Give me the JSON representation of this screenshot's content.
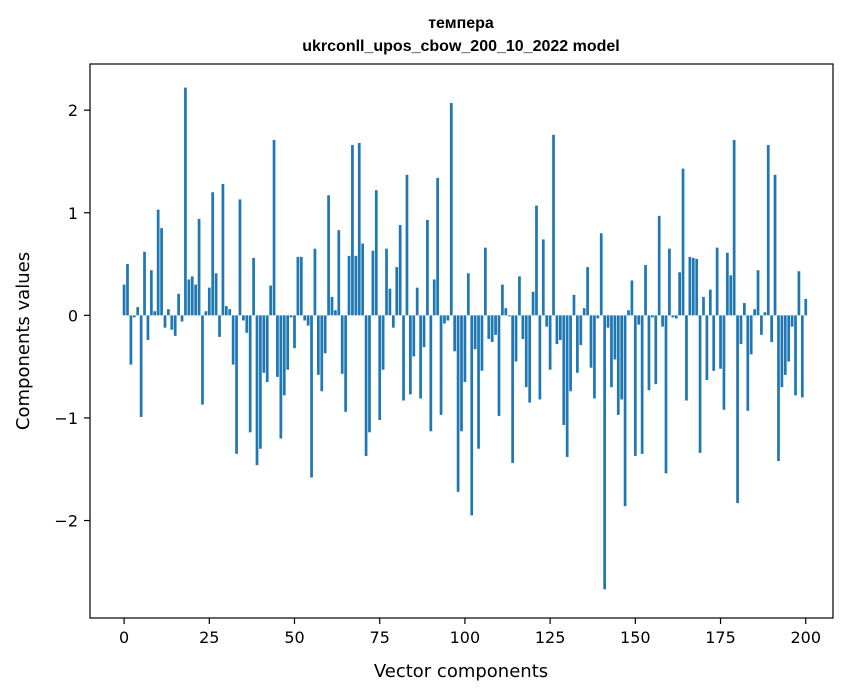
{
  "chart_data": {
    "type": "bar",
    "title": "темпера",
    "subtitle": "ukrconll_upos_cbow_200_10_2022 model",
    "xlabel": "Vector components",
    "ylabel": "Components values",
    "xlim": [
      -10,
      208
    ],
    "ylim": [
      -2.95,
      2.45
    ],
    "x_ticks": [
      0,
      25,
      50,
      75,
      100,
      125,
      150,
      175,
      200
    ],
    "y_ticks": [
      -2,
      -1,
      0,
      1,
      2
    ],
    "grid": false,
    "bar_color": "#1f77b4",
    "values": [
      0.3,
      0.5,
      -0.48,
      -0.02,
      0.08,
      -0.99,
      0.62,
      -0.24,
      0.44,
      0.04,
      1.03,
      0.85,
      -0.12,
      0.06,
      -0.14,
      -0.2,
      0.21,
      -0.06,
      2.22,
      0.35,
      0.38,
      0.3,
      0.94,
      -0.87,
      0.04,
      0.27,
      1.2,
      0.41,
      -0.21,
      1.28,
      0.09,
      0.06,
      -0.48,
      -1.35,
      1.13,
      -0.05,
      -0.17,
      -1.14,
      0.56,
      -1.46,
      -1.3,
      -0.56,
      -0.65,
      0.29,
      1.71,
      -0.6,
      -1.2,
      -0.78,
      -0.53,
      -0.02,
      -0.32,
      0.57,
      0.57,
      -0.05,
      -0.1,
      -1.58,
      0.65,
      -0.58,
      -0.74,
      -0.37,
      1.17,
      0.18,
      0.05,
      0.83,
      -0.57,
      -0.94,
      0.58,
      1.66,
      0.58,
      1.68,
      0.7,
      -1.37,
      -1.14,
      0.63,
      1.22,
      -1.02,
      -0.53,
      0.65,
      0.26,
      -0.12,
      0.47,
      0.88,
      -0.83,
      1.37,
      -0.77,
      -0.4,
      0.27,
      -0.81,
      -0.31,
      0.93,
      -1.13,
      0.35,
      1.34,
      -0.97,
      -0.08,
      -0.05,
      2.07,
      -0.35,
      -1.72,
      -1.13,
      -0.65,
      0.41,
      -1.95,
      -0.33,
      -1.3,
      -0.54,
      0.66,
      -0.23,
      -0.26,
      -0.19,
      -0.98,
      0.3,
      0.07,
      -0.01,
      -1.44,
      -0.45,
      0.38,
      -0.23,
      -0.7,
      -0.85,
      0.23,
      1.07,
      -0.82,
      0.74,
      -0.11,
      -0.53,
      1.76,
      -0.28,
      -0.24,
      -1.07,
      -1.38,
      -0.74,
      0.2,
      -0.56,
      -0.29,
      0.07,
      0.47,
      -0.51,
      -0.81,
      -0.03,
      0.8,
      -2.67,
      -0.12,
      -0.7,
      -0.43,
      -0.97,
      -0.82,
      -1.86,
      0.05,
      0.34,
      -1.37,
      -0.09,
      -1.35,
      0.49,
      -0.73,
      -0.02,
      -0.67,
      0.97,
      -0.11,
      -1.54,
      0.65,
      -0.02,
      -0.03,
      0.42,
      1.43,
      -0.83,
      0.57,
      0.56,
      0.55,
      -1.34,
      0.18,
      -0.63,
      0.25,
      -0.54,
      0.66,
      -0.52,
      -0.92,
      0.61,
      0.39,
      1.71,
      -1.83,
      -0.28,
      0.12,
      -0.93,
      -0.38,
      0.06,
      0.44,
      -0.19,
      0.03,
      1.66,
      -0.26,
      1.37,
      -1.42,
      -0.7,
      -0.58,
      -0.45,
      -0.11,
      -0.78,
      0.43,
      -0.8,
      0.16
    ]
  }
}
